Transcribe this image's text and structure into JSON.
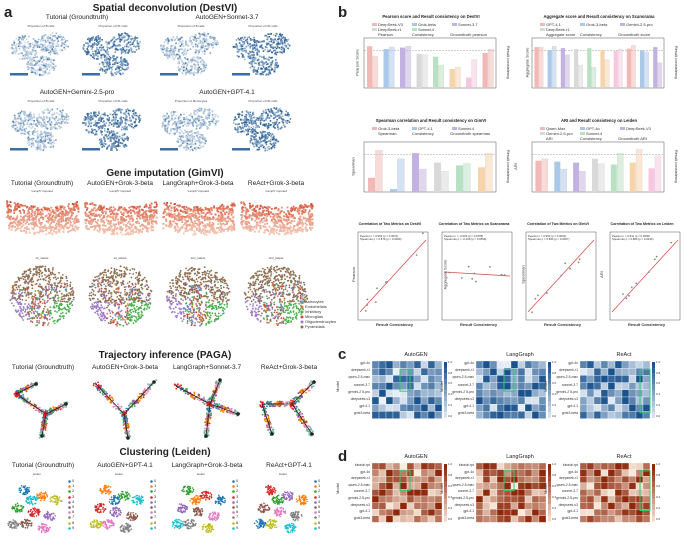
{
  "panels": {
    "a": "a",
    "b": "b",
    "c": "c",
    "d": "d"
  },
  "a": {
    "sections": {
      "deconv": "Spatial deconvolution (DestVI)",
      "impute": "Gene imputation (GimVI)",
      "traj": "Trajectory inference (PAGA)",
      "cluster": "Clustering (Leiden)"
    },
    "deconv_labels": [
      "Tutorial (Groundtruth)",
      "AutoGEN+Sonnet-3.7",
      "AutoGEN+Gemini-2.5-pro",
      "AutoGEN+GPT-4.1"
    ],
    "deconv_map_titles": [
      "Proportion of B cells",
      "Proportion of NK cells",
      "Proportion of B cells",
      "Proportion of NK cells",
      "Proportion of B cells",
      "Proportion of NK cells",
      "Proportion of Monocytes",
      "Proportion of NK cells"
    ],
    "impute_labels": [
      "Tutorial (Groundtruth)",
      "AutoGEN+Grok-3-beta",
      "LangGraph+Grok-3-beta",
      "ReAct+Grok-3-beta"
    ],
    "impute_map_titles": [
      "'Lamp5' imputed",
      "'Lamp5' imputed",
      "'Lamp5' imputed",
      "'Lamp5' imputed"
    ],
    "impute_cell_titles": [
      "str_labels",
      "str_labels",
      "str1_labels",
      "str2_labels"
    ],
    "cell_types": [
      "Astrocytes",
      "Endothelials",
      "Inhibitory",
      "Microglias",
      "Oligodendrocytes",
      "Pyramidals"
    ],
    "cell_colors": [
      "#6b8fd4",
      "#e07b3a",
      "#4caf50",
      "#c94a4a",
      "#9e7cc7",
      "#8d6e50"
    ],
    "traj_labels": [
      "Tutorial (Groundtruth)",
      "AutoGEN+Grok-3-beta",
      "LangGraph+Sonnet-3.7",
      "ReAct+Grok-3-beta"
    ],
    "cluster_labels": [
      "Tutorial (Groundtruth)",
      "AutoGEN+GPT-4.1",
      "LangGraph+Grok-3-beta",
      "ReAct+GPT-4.1"
    ],
    "cluster_titles": [
      "leiden",
      "leiden",
      "leiden",
      "leiden"
    ],
    "cluster_legend": [
      "0",
      "1",
      "2",
      "3",
      "4",
      "5",
      "6",
      "7",
      "8",
      "9"
    ],
    "cluster_colors": [
      "#1f77b4",
      "#ff7f0e",
      "#2ca02c",
      "#d62728",
      "#9467bd",
      "#8c564b",
      "#e377c2",
      "#7f7f7f",
      "#bcbd22",
      "#17becf"
    ]
  },
  "b": {
    "bar_titles": [
      "Pearson score and Result consistency on DestVI",
      "Aggregate score and Result consistency on Scanorama",
      "Spearman correlation and Result consistency on GimVI",
      "ARI and Result consistency on Leiden"
    ],
    "bar_ylabels_left": [
      "Pearson Score",
      "Aggregate Score",
      "Spearman",
      "ARI"
    ],
    "bar_ylabel_right": "Result consistency",
    "legend_models_1": [
      "DeepSeek-V3",
      "Grok-beta",
      "Sonnet-3.7",
      "DeepSeek-r1",
      "Sonnet-4"
    ],
    "legend_models_2": [
      "GPT-4.1",
      "Grok-3-beta",
      "Gemini-2.5-pro",
      "DeepSeek-r1"
    ],
    "legend_models_3": [
      "Grok-3-beta",
      "GPT-4.1",
      "Sonnet-4"
    ],
    "legend_models_4": [
      "Qwen-Max",
      "GPT-4o",
      "DeepSeek-V3",
      "Gemini-2.5-pro",
      "Sonnet-4"
    ],
    "legend_metric": "Pearson",
    "legend_metric2": "Aggregate score",
    "legend_metric3": "Spearman",
    "legend_metric4": "ARI",
    "legend_consistency": "Consistency",
    "legend_groundtruth": "Groundtruth pearson",
    "legend_groundtruth2": "Groundtruth score",
    "legend_groundtruth3": "Groundtruth spearman",
    "legend_groundtruth4": "Groundtruth ARI",
    "scatter_titles": [
      "Correlation of Two Metrics on DestVI",
      "Correlation of Two Metrics on Scanorama",
      "Correlation of Two Metrics on GimVI",
      "Correlation of Two Metrics on Leiden"
    ],
    "scatter_xlabel": "Result Consistency",
    "scatter_ylabels": [
      "Pearson",
      "Aggregate Score",
      "Spearman",
      "ARI"
    ],
    "scatter_stats": [
      [
        "Pearson r = 0.952 (p = 0.0001)",
        "Spearman ρ = 0.879 (p = 0.0009)"
      ],
      [
        "Pearson r = -0.009 (p = 0.9795)",
        "Spearman ρ = -0.018 (p = 0.9599)"
      ],
      [
        "Pearson r = 0.952 (p = 0.0002)",
        "Spearman ρ = 0.893 (p = 0.0007)"
      ],
      [
        "Pearson r = 0.911 (p = 0.0006)",
        "Spearman ρ = 0.889 (p = 0.0014)"
      ]
    ]
  },
  "c": {
    "titles": [
      "AutoGEN",
      "LangGraph",
      "ReAct"
    ],
    "ylabel": "Model",
    "rows": [
      "gpt-4o",
      "deepseek-r1",
      "qwen-2.5-max",
      "sonnet-3.7",
      "gemini-2.5-pro",
      "deepseek-v3",
      "gpt-4.1",
      "grok3-beta"
    ],
    "colorbar": [
      "1.0",
      "0.8",
      "0.6",
      "0.4",
      "0.2",
      "0.0"
    ]
  },
  "d": {
    "titles": [
      "AutoGEN",
      "LangGraph",
      "ReAct"
    ],
    "ylabel": "Model",
    "rows": [
      "tutorial-rpt",
      "gpt-4o",
      "deepseek-r1",
      "qwen-2.5-max",
      "sonnet-3.7",
      "gemini-2.5-pro",
      "deepseek-v3",
      "gpt-4.1",
      "grok3-beta"
    ],
    "colorbar": [
      "1.0",
      "0.8",
      "0.6",
      "0.4",
      "0.2",
      "0.0"
    ]
  }
}
